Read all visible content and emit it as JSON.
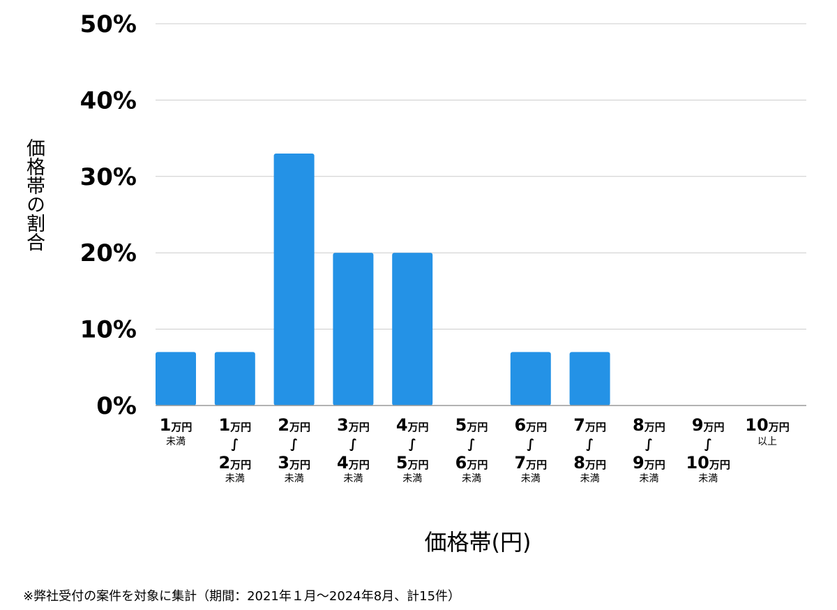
{
  "chart_data": {
    "type": "bar",
    "categories": [
      {
        "line1": "1万円",
        "line2": "未満",
        "line3": ""
      },
      {
        "line1": "1万円",
        "line2": "2万円",
        "line3": "未満"
      },
      {
        "line1": "2万円",
        "line2": "3万円",
        "line3": "未満"
      },
      {
        "line1": "3万円",
        "line2": "4万円",
        "line3": "未満"
      },
      {
        "line1": "4万円",
        "line2": "5万円",
        "line3": "未満"
      },
      {
        "line1": "5万円",
        "line2": "6万円",
        "line3": "未満"
      },
      {
        "line1": "6万円",
        "line2": "7万円",
        "line3": "未満"
      },
      {
        "line1": "7万円",
        "line2": "8万円",
        "line3": "未満"
      },
      {
        "line1": "8万円",
        "line2": "9万円",
        "line3": "未満"
      },
      {
        "line1": "9万円",
        "line2": "10万円",
        "line3": "未満"
      },
      {
        "line1": "10万円",
        "line2": "以上",
        "line3": ""
      }
    ],
    "values": [
      7,
      7,
      33,
      20,
      20,
      0,
      7,
      7,
      0,
      0,
      0
    ],
    "ylim": [
      0,
      50
    ],
    "yticks": [
      "0%",
      "10%",
      "20%",
      "30%",
      "40%",
      "50%"
    ],
    "range_symbol": "∫",
    "ylabel": "価格帯の割合",
    "xlabel": "価格帯(円)",
    "grid": true,
    "colors": {
      "bar": "#2492e6",
      "grid": "#cccccc",
      "axis": "#999999"
    }
  },
  "footnote": "※弊社受付の案件を対象に集計（期間：2021年１月〜2024年8月、計15件）"
}
